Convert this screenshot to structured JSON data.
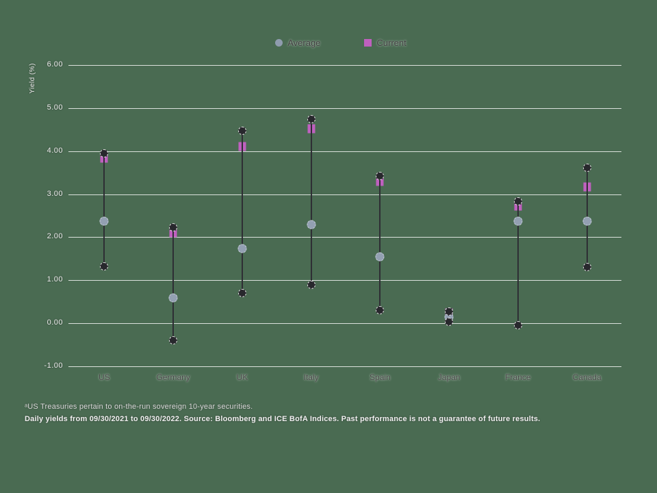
{
  "colors": {
    "background": "#4a6b52",
    "gridline": "rgba(255,255,255,0.8)",
    "range_line": "#2e2e34",
    "minmax_dot": "#28282d",
    "average_dot": "#93a0b2",
    "current_square": "#bf60bf"
  },
  "legend": {
    "items": [
      {
        "label": "Average",
        "marker": "circle",
        "color": "#8f9cae"
      },
      {
        "label": "Current",
        "marker": "square",
        "color": "#bf60bf"
      }
    ]
  },
  "chart_data": {
    "type": "range-dot",
    "title": "",
    "xlabel": "",
    "ylabel": "Yield (%)",
    "ylim": [
      -1,
      6
    ],
    "grid": true,
    "legend_position": "top-center",
    "yticks": [
      {
        "value": 6,
        "label": "6.00"
      },
      {
        "value": 5,
        "label": "5.00"
      },
      {
        "value": 4,
        "label": "4.00"
      },
      {
        "value": 3,
        "label": "3.00"
      },
      {
        "value": 2,
        "label": "2.00"
      },
      {
        "value": 1,
        "label": "1.00"
      },
      {
        "value": 0,
        "label": "0.00"
      },
      {
        "value": -1,
        "label": "-1.00"
      }
    ],
    "categories": [
      "US",
      "Germany",
      "UK",
      "Italy",
      "Spain",
      "Japan",
      "France",
      "Canada"
    ],
    "series": [
      {
        "name": "Max",
        "values": [
          3.94,
          2.23,
          4.48,
          4.75,
          3.43,
          0.27,
          2.83,
          3.61
        ]
      },
      {
        "name": "Min",
        "values": [
          1.33,
          -0.4,
          0.7,
          0.9,
          0.3,
          0.03,
          -0.04,
          1.3
        ]
      },
      {
        "name": "Average",
        "values": [
          2.37,
          0.59,
          1.73,
          2.29,
          1.54,
          0.14,
          2.37,
          2.37
        ]
      },
      {
        "name": "Current",
        "values": [
          3.83,
          2.1,
          4.1,
          4.52,
          3.3,
          0.24,
          2.72,
          3.17
        ]
      }
    ]
  },
  "footnotes": {
    "line1": "ᵃUS Treasuries pertain to on-the-run sovereign 10-year securities.",
    "line2": "Daily yields from 09/30/2021 to 09/30/2022. Source: Bloomberg and ICE BofA Indices. Past performance is not a guarantee of future results."
  }
}
